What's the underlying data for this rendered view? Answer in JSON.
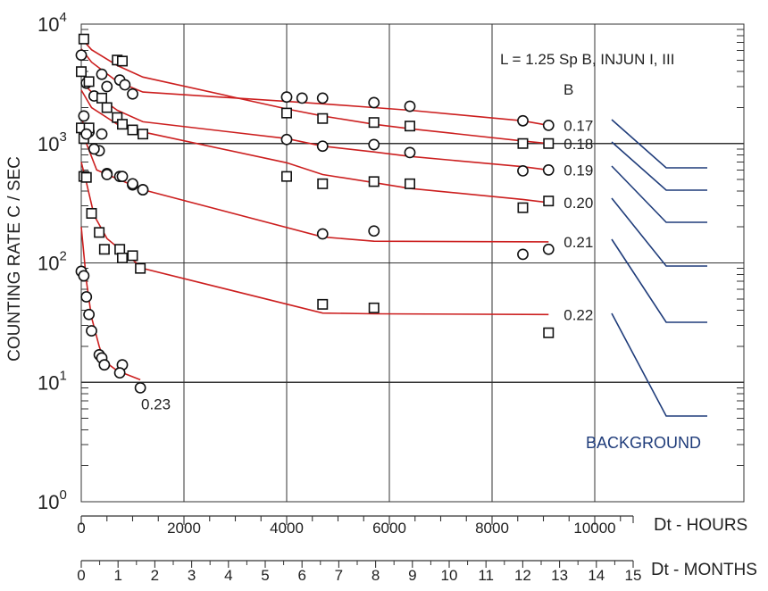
{
  "chart_data": {
    "type": "scatter",
    "title": "L = 1.25  Sp B, INJUN I, III",
    "ylabel": "COUNTING RATE  C / SEC",
    "yscale": "log",
    "ylim": [
      1,
      10000
    ],
    "y_ticks": [
      {
        "value": 1,
        "base": "10",
        "exp": "0"
      },
      {
        "value": 10,
        "base": "10",
        "exp": "1"
      },
      {
        "value": 100,
        "base": "10",
        "exp": "2"
      },
      {
        "value": 1000,
        "base": "10",
        "exp": "3"
      },
      {
        "value": 10000,
        "base": "10",
        "exp": "4"
      }
    ],
    "x_hours": {
      "label_prefix": "D",
      "label_suffix": "t - HOURS",
      "range": [
        0,
        12500
      ],
      "ticks": [
        "0",
        "2000",
        "4000",
        "6000",
        "8000",
        "10000"
      ],
      "tick_values": [
        0,
        2000,
        4000,
        6000,
        8000,
        10000
      ]
    },
    "x_months": {
      "label_prefix": "D",
      "label_suffix": "t - MONTHS",
      "range": [
        0,
        15
      ],
      "ticks": [
        "0",
        "1",
        "2",
        "3",
        "4",
        "5",
        "6",
        "7",
        "8",
        "9",
        "10",
        "11",
        "12",
        "13",
        "14",
        "15"
      ]
    },
    "b_header": "B",
    "background_label": "BACKGROUND",
    "colors": {
      "fit": "#cc1f1f",
      "background": "#1f3c7a",
      "grid": "#333333",
      "marker": "#111111"
    },
    "series": [
      {
        "name": "0.17",
        "marker": "circle",
        "points": [
          [
            0,
            5500
          ],
          [
            100,
            3200
          ],
          [
            250,
            2500
          ],
          [
            400,
            3800
          ],
          [
            500,
            3000
          ],
          [
            750,
            3400
          ],
          [
            850,
            3100
          ],
          [
            1000,
            2600
          ],
          [
            4000,
            2450
          ],
          [
            4300,
            2400
          ],
          [
            4700,
            2400
          ],
          [
            5700,
            2200
          ],
          [
            6400,
            2050
          ],
          [
            8600,
            1550
          ],
          [
            9100,
            1420
          ]
        ],
        "fit": [
          [
            0,
            6200
          ],
          [
            200,
            4800
          ],
          [
            700,
            3300
          ],
          [
            1200,
            2700
          ],
          [
            4000,
            2250
          ],
          [
            4700,
            2150
          ],
          [
            5700,
            2000
          ],
          [
            6400,
            1900
          ],
          [
            8600,
            1550
          ],
          [
            9100,
            1420
          ]
        ]
      },
      {
        "name": "0.18",
        "marker": "square",
        "points": [
          [
            50,
            7500
          ],
          [
            0,
            4000
          ],
          [
            150,
            3300
          ],
          [
            700,
            5000
          ],
          [
            800,
            4900
          ],
          [
            400,
            2400
          ],
          [
            500,
            2000
          ],
          [
            700,
            1650
          ],
          [
            800,
            1450
          ],
          [
            1000,
            1300
          ],
          [
            4000,
            1800
          ],
          [
            4700,
            1620
          ],
          [
            5700,
            1500
          ],
          [
            6400,
            1400
          ],
          [
            8600,
            1000
          ],
          [
            9100,
            1000
          ]
        ],
        "fit": [
          [
            0,
            7600
          ],
          [
            200,
            6100
          ],
          [
            700,
            4500
          ],
          [
            1200,
            3600
          ],
          [
            4000,
            1950
          ],
          [
            4700,
            1700
          ],
          [
            5700,
            1450
          ],
          [
            6400,
            1330
          ],
          [
            8600,
            1050
          ],
          [
            9100,
            1000
          ]
        ]
      },
      {
        "name": "0.19",
        "marker": "circle",
        "points": [
          [
            50,
            1700
          ],
          [
            150,
            1250
          ],
          [
            350,
            870
          ],
          [
            500,
            560
          ],
          [
            750,
            530
          ],
          [
            1000,
            450
          ],
          [
            1200,
            410
          ],
          [
            4000,
            1080
          ],
          [
            4700,
            950
          ],
          [
            5700,
            980
          ],
          [
            6400,
            840
          ],
          [
            8600,
            590
          ],
          [
            9100,
            600
          ]
        ],
        "fit": [
          [
            0,
            3300
          ],
          [
            200,
            2700
          ],
          [
            700,
            1900
          ],
          [
            1200,
            1520
          ],
          [
            4000,
            1100
          ],
          [
            4700,
            950
          ],
          [
            5700,
            850
          ],
          [
            6400,
            780
          ],
          [
            8600,
            640
          ],
          [
            9100,
            600
          ]
        ]
      },
      {
        "name": "0.20",
        "marker": "square",
        "points": [
          [
            0,
            1350
          ],
          [
            50,
            1100
          ],
          [
            150,
            1350
          ],
          [
            1200,
            1200
          ],
          [
            50,
            530
          ],
          [
            4000,
            530
          ],
          [
            4700,
            460
          ],
          [
            5700,
            480
          ],
          [
            6400,
            460
          ],
          [
            8600,
            290
          ],
          [
            9100,
            330
          ]
        ],
        "fit": [
          [
            0,
            2800
          ],
          [
            200,
            2000
          ],
          [
            700,
            1450
          ],
          [
            1200,
            1250
          ],
          [
            4000,
            690
          ],
          [
            4700,
            550
          ],
          [
            5700,
            470
          ],
          [
            6400,
            420
          ],
          [
            8600,
            340
          ],
          [
            9100,
            320
          ]
        ]
      },
      {
        "name": "0.21",
        "marker": "circle",
        "points": [
          [
            100,
            1200
          ],
          [
            250,
            900
          ],
          [
            400,
            1200
          ],
          [
            500,
            550
          ],
          [
            800,
            530
          ],
          [
            1000,
            460
          ],
          [
            1200,
            410
          ],
          [
            4700,
            175
          ],
          [
            5700,
            185
          ],
          [
            8600,
            118
          ],
          [
            9100,
            130
          ]
        ],
        "fit": [
          [
            0,
            1800
          ],
          [
            100,
            1000
          ],
          [
            300,
            600
          ],
          [
            1200,
            410
          ],
          [
            4700,
            165
          ],
          [
            5700,
            152
          ],
          [
            9100,
            150
          ]
        ]
      },
      {
        "name": "0.22",
        "marker": "square",
        "points": [
          [
            100,
            520
          ],
          [
            200,
            260
          ],
          [
            350,
            180
          ],
          [
            450,
            130
          ],
          [
            750,
            130
          ],
          [
            800,
            110
          ],
          [
            1000,
            115
          ],
          [
            1150,
            90
          ],
          [
            4700,
            45
          ],
          [
            5700,
            42
          ],
          [
            9100,
            26
          ]
        ],
        "fit": [
          [
            0,
            700
          ],
          [
            100,
            470
          ],
          [
            250,
            250
          ],
          [
            500,
            160
          ],
          [
            1200,
            90
          ],
          [
            4700,
            38
          ],
          [
            5700,
            37.5
          ],
          [
            9100,
            37
          ]
        ]
      },
      {
        "name": "0.23",
        "marker": "circle",
        "points": [
          [
            0,
            85
          ],
          [
            50,
            78
          ],
          [
            100,
            52
          ],
          [
            150,
            37
          ],
          [
            200,
            27
          ],
          [
            350,
            17
          ],
          [
            400,
            16
          ],
          [
            450,
            14
          ],
          [
            800,
            14
          ],
          [
            750,
            12
          ],
          [
            1150,
            9
          ]
        ],
        "fit": [
          [
            0,
            200
          ],
          [
            100,
            70
          ],
          [
            200,
            35
          ],
          [
            350,
            20
          ],
          [
            450,
            15
          ],
          [
            700,
            12.5
          ],
          [
            1150,
            10.5
          ]
        ]
      }
    ]
  }
}
